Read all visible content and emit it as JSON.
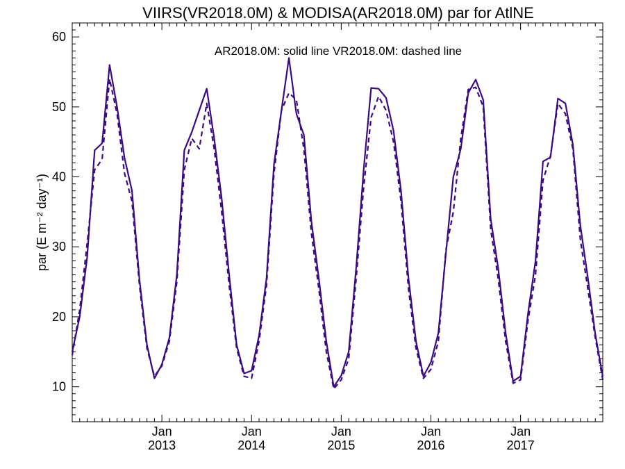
{
  "chart_data": {
    "type": "line",
    "title": "VIIRS(VR2018.0M) & MODISA(AR2018.0M)  par for AtlNE",
    "annotation": "AR2018.0M: solid line   VR2018.0M: dashed line",
    "ylabel": "par (E m⁻² day⁻¹)",
    "xlabel": "",
    "ylim": [
      5,
      62
    ],
    "xlim": [
      "2012-01",
      "2017-12"
    ],
    "yticks": [
      10,
      20,
      30,
      40,
      50,
      60
    ],
    "xticks": [
      {
        "month": "Jan",
        "year": "2013",
        "x": "2013-01"
      },
      {
        "month": "Jan",
        "year": "2014",
        "x": "2014-01"
      },
      {
        "month": "Jan",
        "year": "2015",
        "x": "2015-01"
      },
      {
        "month": "Jan",
        "year": "2016",
        "x": "2016-01"
      },
      {
        "month": "Jan",
        "year": "2017",
        "x": "2017-01"
      }
    ],
    "grid": false,
    "line_color": "#3a0a80",
    "x": [
      "2012-01",
      "2012-02",
      "2012-03",
      "2012-04",
      "2012-05",
      "2012-06",
      "2012-07",
      "2012-08",
      "2012-09",
      "2012-10",
      "2012-11",
      "2012-12",
      "2013-01",
      "2013-02",
      "2013-03",
      "2013-04",
      "2013-05",
      "2013-06",
      "2013-07",
      "2013-08",
      "2013-09",
      "2013-10",
      "2013-11",
      "2013-12",
      "2014-01",
      "2014-02",
      "2014-03",
      "2014-04",
      "2014-05",
      "2014-06",
      "2014-07",
      "2014-08",
      "2014-09",
      "2014-10",
      "2014-11",
      "2014-12",
      "2015-01",
      "2015-02",
      "2015-03",
      "2015-04",
      "2015-05",
      "2015-06",
      "2015-07",
      "2015-08",
      "2015-09",
      "2015-10",
      "2015-11",
      "2015-12",
      "2016-01",
      "2016-02",
      "2016-03",
      "2016-04",
      "2016-05",
      "2016-06",
      "2016-07",
      "2016-08",
      "2016-09",
      "2016-10",
      "2016-11",
      "2016-12",
      "2017-01",
      "2017-02",
      "2017-03",
      "2017-04",
      "2017-05",
      "2017-06",
      "2017-07",
      "2017-08",
      "2017-09",
      "2017-10",
      "2017-11",
      "2017-12"
    ],
    "series": [
      {
        "name": "AR2018.0M",
        "style": "solid",
        "values": [
          15.0,
          20.0,
          28.5,
          43.8,
          44.8,
          56.0,
          50.0,
          42.7,
          38.0,
          25.3,
          16.0,
          11.2,
          13.2,
          17.0,
          26.0,
          43.8,
          46.4,
          49.5,
          52.6,
          45.5,
          36.9,
          26.0,
          16.0,
          11.9,
          12.3,
          17.3,
          25.5,
          41.8,
          49.5,
          57.0,
          49.0,
          46.0,
          33.7,
          25.5,
          16.5,
          10.0,
          11.6,
          15.0,
          27.0,
          41.0,
          52.7,
          52.6,
          51.3,
          46.6,
          38.0,
          25.5,
          16.5,
          11.5,
          13.5,
          17.7,
          29.0,
          40.0,
          44.0,
          52.0,
          53.9,
          51.0,
          34.0,
          27.0,
          17.7,
          10.8,
          11.5,
          20.5,
          28.0,
          42.2,
          42.8,
          51.2,
          50.5,
          44.6,
          33.0,
          25.6,
          17.5,
          11.5
        ]
      },
      {
        "name": "VR2018.0M",
        "style": "dashed",
        "values": [
          14.5,
          21.0,
          30.5,
          41.0,
          42.5,
          54.0,
          49.0,
          40.5,
          36.5,
          24.5,
          15.5,
          11.5,
          13.0,
          16.5,
          25.0,
          41.0,
          45.5,
          44.0,
          50.5,
          44.0,
          35.0,
          24.5,
          15.5,
          11.5,
          11.2,
          16.5,
          24.5,
          40.5,
          49.5,
          52.0,
          51.0,
          44.0,
          32.0,
          24.0,
          15.0,
          9.7,
          11.0,
          14.0,
          25.5,
          38.5,
          48.5,
          51.5,
          49.5,
          45.0,
          36.5,
          24.0,
          15.5,
          11.2,
          12.5,
          16.5,
          29.5,
          35.0,
          45.5,
          52.5,
          52.8,
          50.0,
          32.5,
          25.5,
          16.5,
          10.5,
          11.0,
          19.5,
          26.0,
          39.5,
          43.0,
          50.5,
          49.0,
          44.0,
          31.0,
          24.0,
          17.0,
          11.0
        ]
      }
    ]
  }
}
